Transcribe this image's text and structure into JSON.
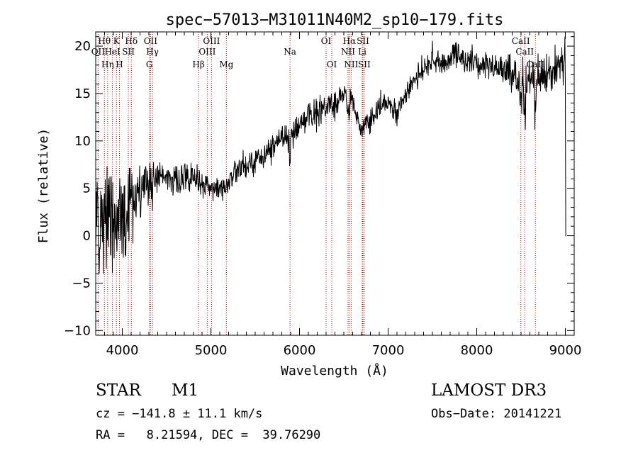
{
  "chart_data": {
    "type": "line",
    "title": "spec−57013−M31011N40M2_sp10−179.fits",
    "xlabel": "Wavelength (Å)",
    "ylabel": "Flux (relative)",
    "xlim": [
      3700,
      9100
    ],
    "ylim": [
      -10.5,
      21.5
    ],
    "xticks": [
      4000,
      5000,
      6000,
      7000,
      8000,
      9000
    ],
    "yticks": [
      -10,
      -5,
      0,
      5,
      10,
      15,
      20
    ],
    "ytick_labels": [
      "−10",
      "−5",
      "0",
      "5",
      "10",
      "15",
      "20"
    ],
    "grid": false,
    "line_color": "#000000",
    "marker_color": "#c80000",
    "continuum": [
      [
        3700,
        2.5
      ],
      [
        3800,
        2.0
      ],
      [
        3900,
        2.0
      ],
      [
        4000,
        2.5
      ],
      [
        4100,
        3.5
      ],
      [
        4200,
        4.5
      ],
      [
        4300,
        5.5
      ],
      [
        4400,
        6.2
      ],
      [
        4500,
        6.0
      ],
      [
        4600,
        6.0
      ],
      [
        4700,
        6.2
      ],
      [
        4800,
        6.0
      ],
      [
        4900,
        5.5
      ],
      [
        5000,
        5.2
      ],
      [
        5100,
        5.0
      ],
      [
        5200,
        5.5
      ],
      [
        5300,
        7.0
      ],
      [
        5400,
        7.5
      ],
      [
        5500,
        8.0
      ],
      [
        5600,
        8.5
      ],
      [
        5700,
        9.5
      ],
      [
        5800,
        10.0
      ],
      [
        5900,
        10.5
      ],
      [
        6000,
        11.5
      ],
      [
        6100,
        12.5
      ],
      [
        6200,
        13.0
      ],
      [
        6300,
        13.5
      ],
      [
        6400,
        14.0
      ],
      [
        6500,
        14.8
      ],
      [
        6600,
        14.0
      ],
      [
        6700,
        11.0
      ],
      [
        6800,
        12.0
      ],
      [
        6900,
        13.5
      ],
      [
        7000,
        14.5
      ],
      [
        7100,
        13.0
      ],
      [
        7200,
        15.0
      ],
      [
        7300,
        16.5
      ],
      [
        7400,
        17.5
      ],
      [
        7500,
        18.5
      ],
      [
        7600,
        18.0
      ],
      [
        7700,
        18.5
      ],
      [
        7800,
        19.0
      ],
      [
        7900,
        18.5
      ],
      [
        8000,
        18.0
      ],
      [
        8100,
        18.0
      ],
      [
        8200,
        18.0
      ],
      [
        8300,
        17.5
      ],
      [
        8400,
        17.0
      ],
      [
        8500,
        16.5
      ],
      [
        8600,
        16.5
      ],
      [
        8700,
        16.5
      ],
      [
        8800,
        17.0
      ],
      [
        8900,
        17.5
      ],
      [
        9000,
        18.0
      ]
    ],
    "lines": [
      {
        "name": "Hθ",
        "wl": 3798,
        "row": 1
      },
      {
        "name": "K",
        "wl": 3934,
        "row": 1
      },
      {
        "name": "Hδ",
        "wl": 4102,
        "row": 1
      },
      {
        "name": "OII",
        "wl": 4319,
        "row": 1
      },
      {
        "name": "OIII",
        "wl": 5007,
        "row": 1
      },
      {
        "name": "OI",
        "wl": 6300,
        "row": 1
      },
      {
        "name": "Hα",
        "wl": 6563,
        "row": 1
      },
      {
        "name": "SII",
        "wl": 6716,
        "row": 1
      },
      {
        "name": "CaII",
        "wl": 8498,
        "row": 1
      },
      {
        "name": "OII",
        "wl": 3727,
        "row": 2
      },
      {
        "name": "HeI",
        "wl": 3889,
        "row": 2
      },
      {
        "name": "SII",
        "wl": 4069,
        "row": 2
      },
      {
        "name": "Hγ",
        "wl": 4341,
        "row": 2
      },
      {
        "name": "OIII",
        "wl": 4959,
        "row": 2
      },
      {
        "name": "Na",
        "wl": 5893,
        "row": 2
      },
      {
        "name": "NII",
        "wl": 6548,
        "row": 2
      },
      {
        "name": "Li",
        "wl": 6708,
        "row": 2
      },
      {
        "name": "CaII",
        "wl": 8542,
        "row": 2
      },
      {
        "name": "Hη",
        "wl": 3835,
        "row": 3
      },
      {
        "name": "H",
        "wl": 3968,
        "row": 3
      },
      {
        "name": "G",
        "wl": 4305,
        "row": 3
      },
      {
        "name": "Hβ",
        "wl": 4861,
        "row": 3
      },
      {
        "name": "Mg",
        "wl": 5175,
        "row": 3
      },
      {
        "name": "OI",
        "wl": 6364,
        "row": 3
      },
      {
        "name": "NII",
        "wl": 6583,
        "row": 3
      },
      {
        "name": "SII",
        "wl": 6731,
        "row": 3
      },
      {
        "name": "CaII",
        "wl": 8662,
        "row": 3
      }
    ]
  },
  "info": {
    "object_type": "STAR",
    "subclass": "M1",
    "survey": "LAMOST DR3",
    "cz": "cz = −141.8 ± 11.1 km/s",
    "obs_date": "Obs−Date: 20141221",
    "coords": "RA =   8.21594, DEC =  39.76290"
  }
}
